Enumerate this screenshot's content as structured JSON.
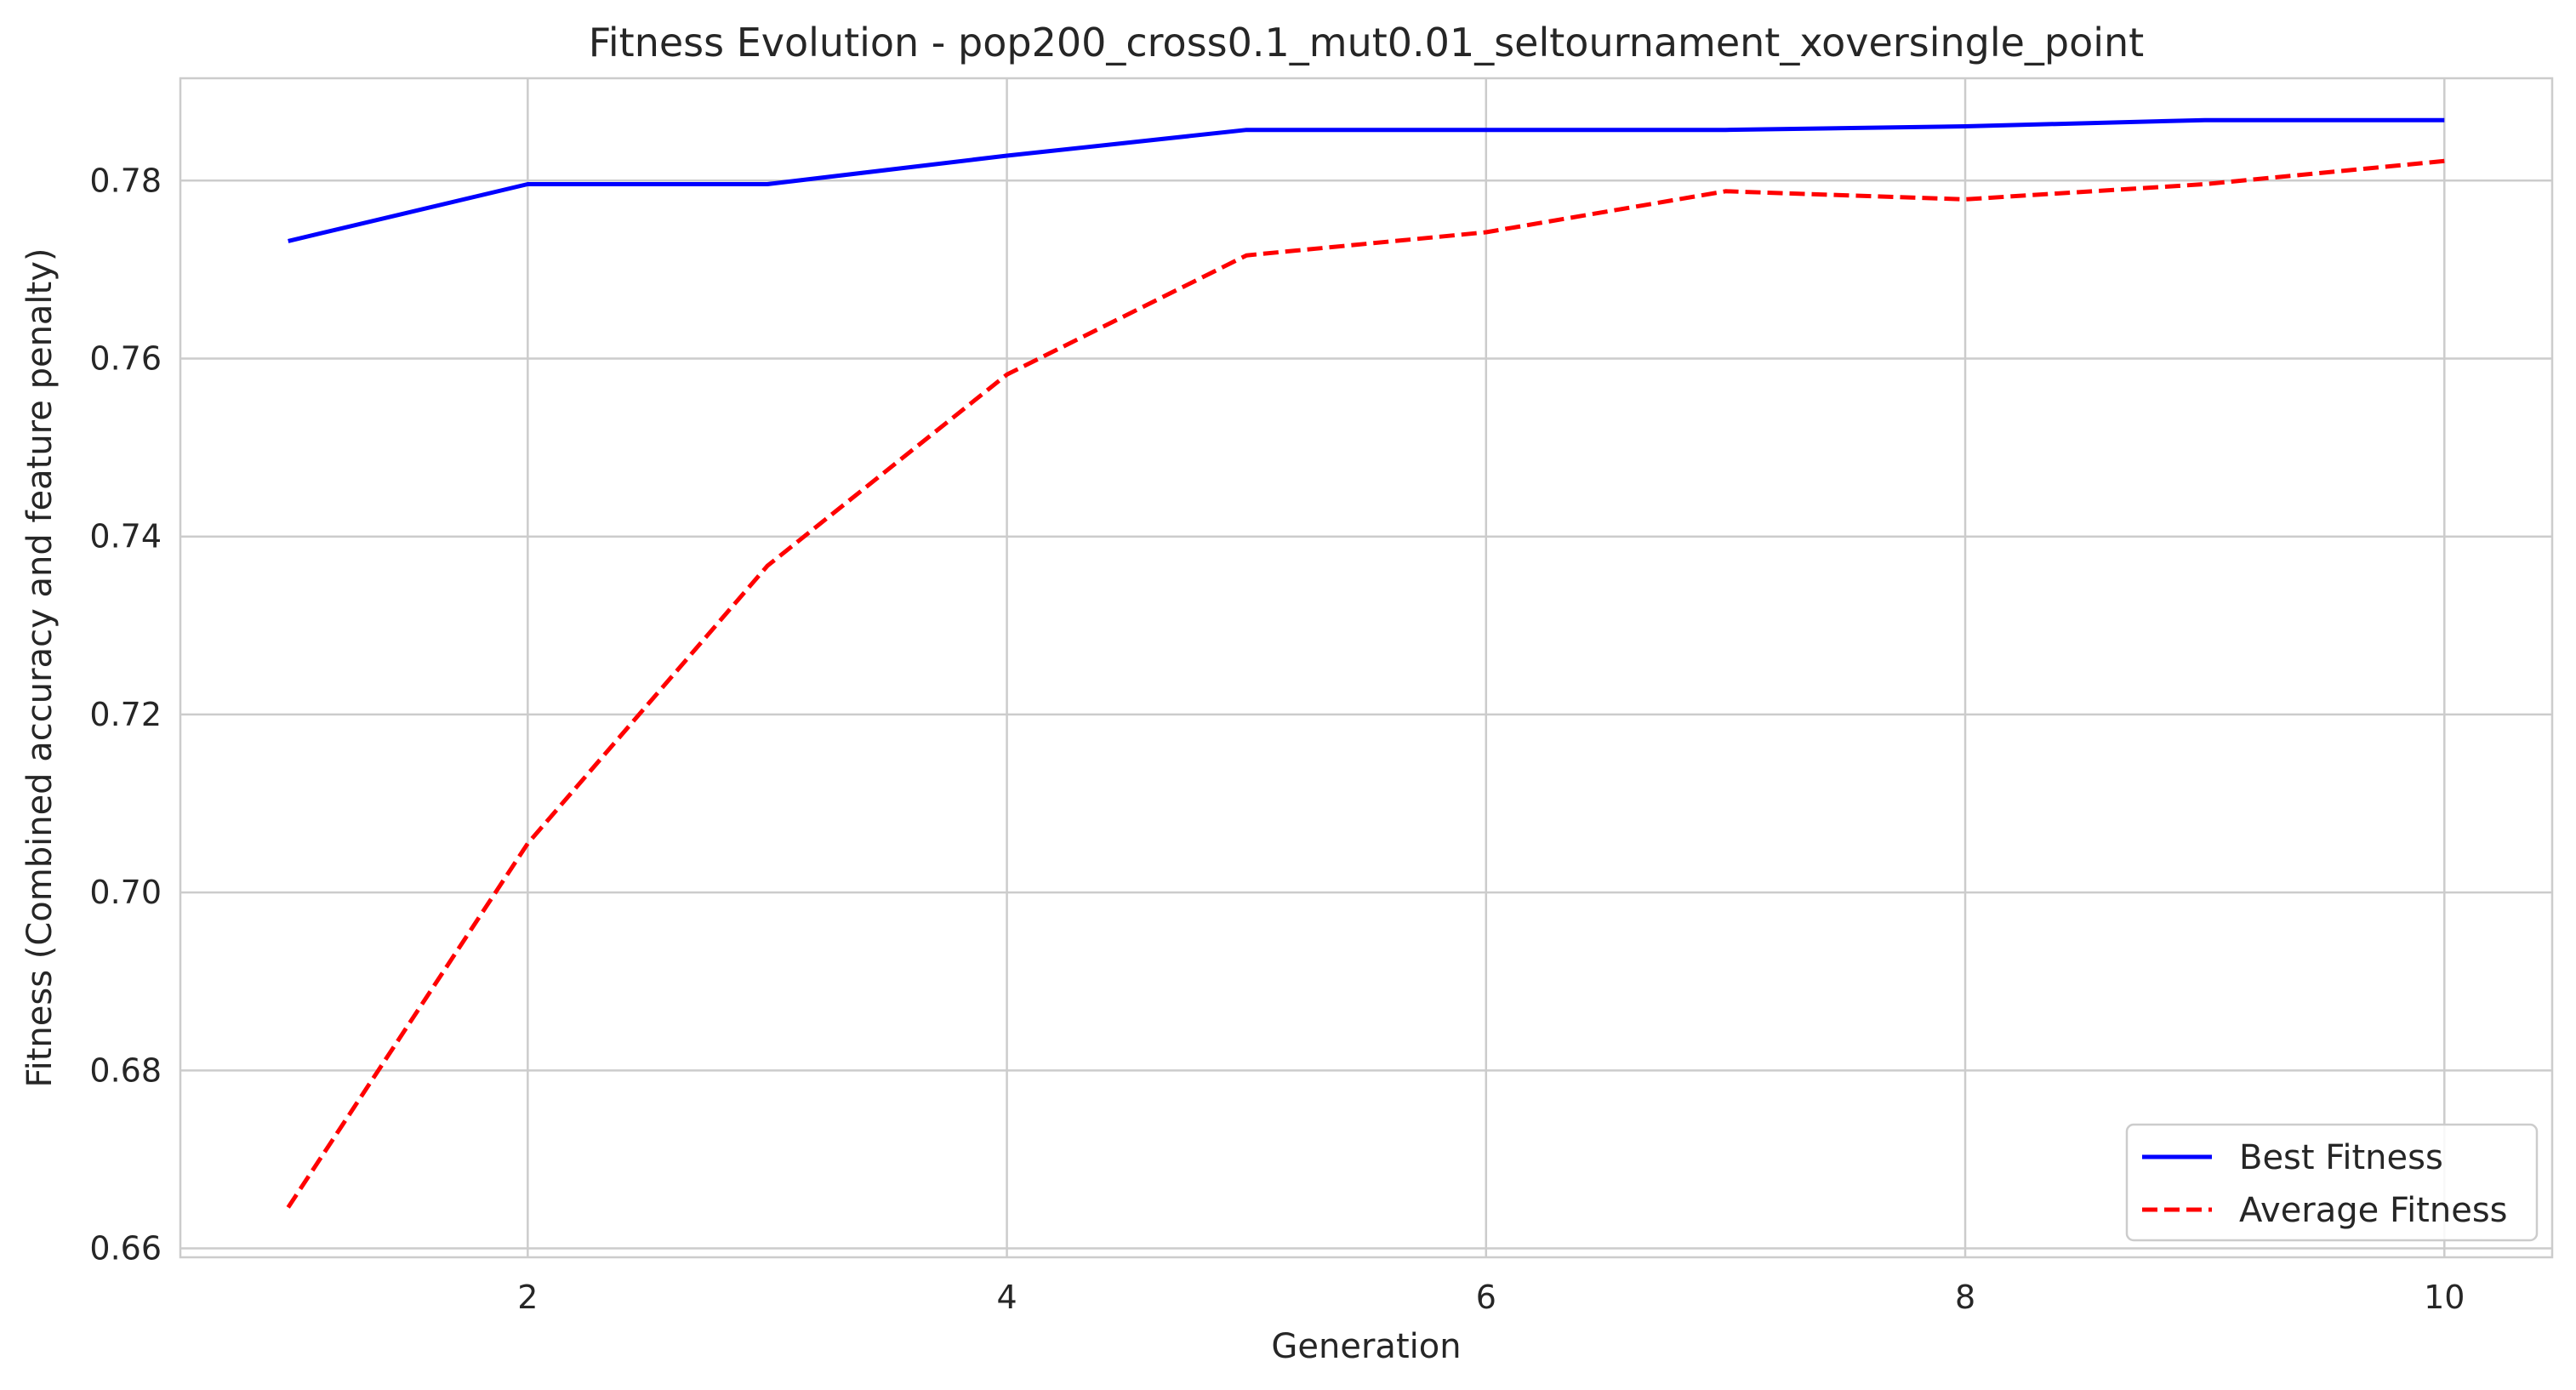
{
  "chart_data": {
    "type": "line",
    "title": "Fitness Evolution - pop200_cross0.1_mut0.01_seltournament_xoversingle_point",
    "xlabel": "Generation",
    "ylabel": "Fitness (Combined accuracy and feature penalty)",
    "x": [
      1,
      2,
      3,
      4,
      5,
      6,
      7,
      8,
      9,
      10
    ],
    "xlim": [
      0.55,
      10.45
    ],
    "ylim": [
      0.659,
      0.7915
    ],
    "xticks": [
      2,
      4,
      6,
      8,
      10
    ],
    "xtick_labels": [
      "2",
      "4",
      "6",
      "8",
      "10"
    ],
    "yticks": [
      0.66,
      0.68,
      0.7,
      0.72,
      0.74,
      0.76,
      0.78
    ],
    "ytick_labels": [
      "0.66",
      "0.68",
      "0.70",
      "0.72",
      "0.74",
      "0.76",
      "0.78"
    ],
    "grid": true,
    "legend_position": "lower-right",
    "series": [
      {
        "name": "Best Fitness",
        "color": "#0000ff",
        "style": "solid",
        "values": [
          0.7732,
          0.7796,
          0.7796,
          0.7828,
          0.7857,
          0.7857,
          0.7857,
          0.7861,
          0.7868,
          0.7868
        ]
      },
      {
        "name": "Average Fitness",
        "color": "#ff0000",
        "style": "dashed",
        "values": [
          0.6646,
          0.7055,
          0.7367,
          0.7582,
          0.7716,
          0.7742,
          0.7788,
          0.7779,
          0.7796,
          0.7822
        ]
      }
    ]
  }
}
